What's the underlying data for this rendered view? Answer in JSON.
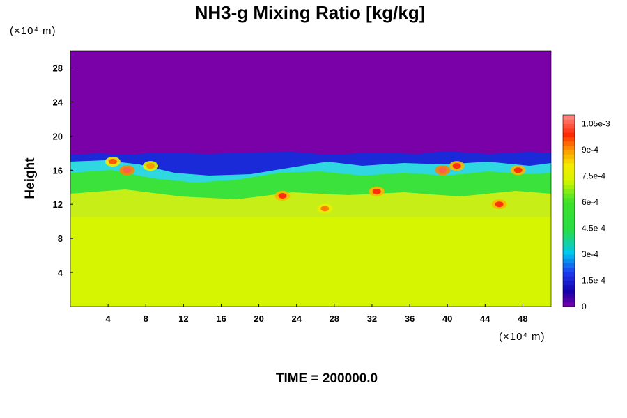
{
  "chart_data": {
    "type": "heatmap",
    "title": "NH3-g Mixing Ratio [kg/kg]",
    "ylabel": "Height",
    "x_unit": "(×10⁴ m)",
    "y_unit": "(×10⁴ m)",
    "xlim": [
      0,
      51
    ],
    "ylim": [
      0,
      30
    ],
    "x_ticks": [
      "4",
      "8",
      "12",
      "16",
      "20",
      "24",
      "28",
      "32",
      "36",
      "40",
      "44",
      "48"
    ],
    "x_tick_values": [
      4,
      8,
      12,
      16,
      20,
      24,
      28,
      32,
      36,
      40,
      44,
      48
    ],
    "y_ticks": [
      "4",
      "8",
      "12",
      "16",
      "20",
      "24",
      "28"
    ],
    "y_tick_values": [
      4,
      8,
      12,
      16,
      20,
      24,
      28
    ],
    "colorbar": {
      "min": 0,
      "max": 0.0011,
      "tick_labels": [
        "0",
        "1.5e-4",
        "3e-4",
        "4.5e-4",
        "6e-4",
        "7.5e-4",
        "9e-4",
        "1.05e-3"
      ],
      "tick_values": [
        0,
        0.00015,
        0.0003,
        0.00045,
        0.0006,
        0.00075,
        0.0009,
        0.00105
      ]
    },
    "field_summary": {
      "background_value_below_10": 0.00078,
      "value_above_18": 0,
      "mixing_layer_height_range": [
        10,
        18
      ]
    },
    "hotspots": [
      {
        "x": 6,
        "y": 16,
        "value": 0.00105
      },
      {
        "x": 8.5,
        "y": 16.5,
        "value": 0.0009
      },
      {
        "x": 22.5,
        "y": 13,
        "value": 0.001
      },
      {
        "x": 27,
        "y": 11.5,
        "value": 0.00092
      },
      {
        "x": 32.5,
        "y": 13.5,
        "value": 0.001
      },
      {
        "x": 39.5,
        "y": 16,
        "value": 0.00105
      },
      {
        "x": 41,
        "y": 16.5,
        "value": 0.001
      },
      {
        "x": 45.5,
        "y": 12,
        "value": 0.001
      },
      {
        "x": 47.5,
        "y": 16,
        "value": 0.001
      },
      {
        "x": 4.5,
        "y": 17,
        "value": 0.00095
      }
    ]
  },
  "footer": {
    "time_label": "TIME = 200000.0"
  }
}
